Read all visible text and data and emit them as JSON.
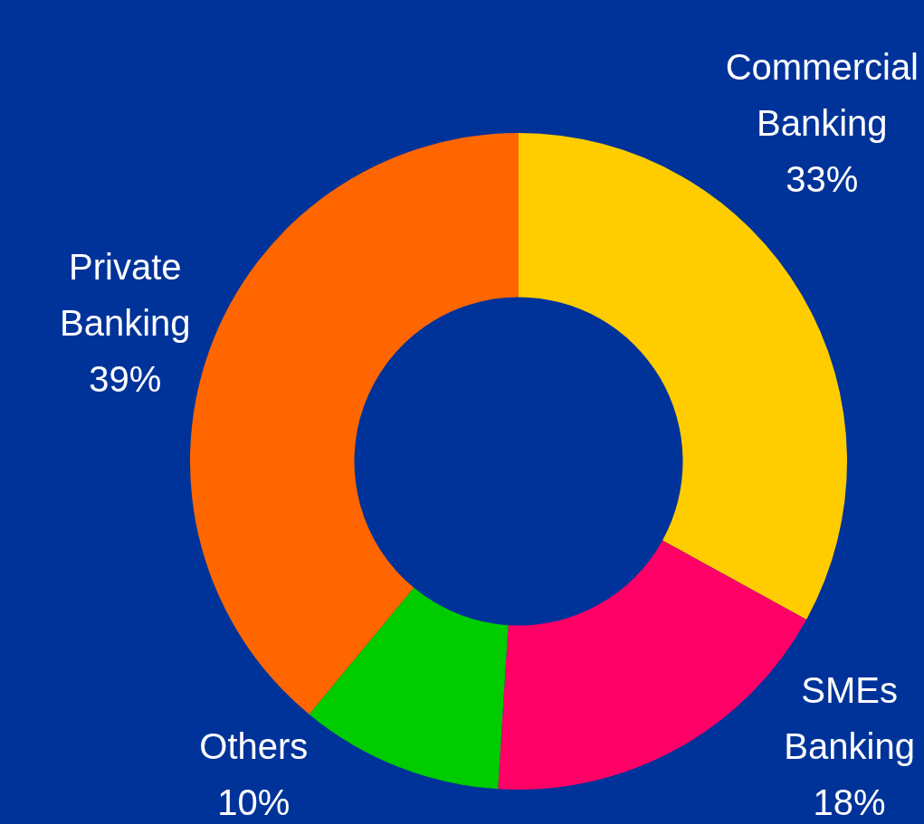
{
  "chart_data": {
    "type": "donut",
    "categories": [
      "Commercial Banking",
      "SMEs Banking",
      "Others",
      "Private Banking"
    ],
    "values": [
      33,
      18,
      10,
      39
    ],
    "colors": [
      "#ffcc00",
      "#ff0066",
      "#00cc00",
      "#ff6600"
    ],
    "value_labels": [
      "33%",
      "18%",
      "10%",
      "39%"
    ],
    "legend": false
  }
}
